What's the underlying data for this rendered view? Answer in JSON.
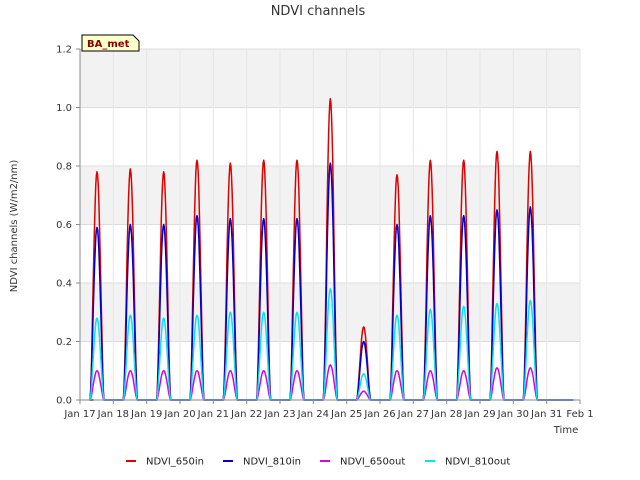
{
  "chart_data": {
    "type": "line",
    "title": "NDVI channels",
    "xlabel": "Time",
    "ylabel": "NDVI channels (W/m2/nm)",
    "ylim": [
      0.0,
      1.2
    ],
    "yticks": [
      "0.0",
      "0.2",
      "0.4",
      "0.6",
      "0.8",
      "1.0",
      "1.2"
    ],
    "xlim_days": [
      0,
      15
    ],
    "xticks": [
      "Jan 17",
      "Jan 18",
      "Jan 19",
      "Jan 20",
      "Jan 21",
      "Jan 22",
      "Jan 23",
      "Jan 24",
      "Jan 25",
      "Jan 26",
      "Jan 27",
      "Jan 28",
      "Jan 29",
      "Jan 30",
      "Jan 31",
      "Feb 1"
    ],
    "grid": true,
    "legend_position": "bottom",
    "badge": "BA_met",
    "series": [
      {
        "name": "NDVI_650in",
        "color": "#e00000",
        "daily_peaks": [
          0.78,
          0.79,
          0.78,
          0.82,
          0.81,
          0.82,
          0.82,
          1.03,
          0.25,
          0.77,
          0.82,
          0.82,
          0.85,
          0.85
        ]
      },
      {
        "name": "NDVI_810in",
        "color": "#0000cc",
        "daily_peaks": [
          0.59,
          0.6,
          0.6,
          0.63,
          0.62,
          0.62,
          0.62,
          0.81,
          0.2,
          0.6,
          0.63,
          0.63,
          0.65,
          0.66
        ]
      },
      {
        "name": "NDVI_650out",
        "color": "#dd00dd",
        "daily_peaks": [
          0.1,
          0.1,
          0.1,
          0.1,
          0.1,
          0.1,
          0.1,
          0.12,
          0.03,
          0.1,
          0.1,
          0.1,
          0.11,
          0.11
        ]
      },
      {
        "name": "NDVI_810out",
        "color": "#00e5ee",
        "daily_peaks": [
          0.28,
          0.29,
          0.28,
          0.29,
          0.3,
          0.3,
          0.3,
          0.38,
          0.09,
          0.29,
          0.31,
          0.32,
          0.33,
          0.34
        ]
      }
    ]
  }
}
